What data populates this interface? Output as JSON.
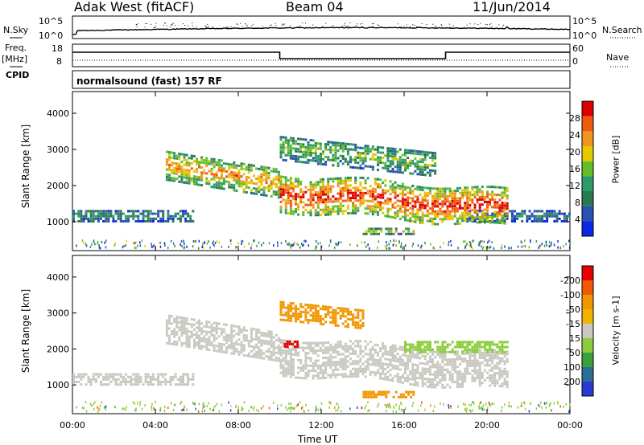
{
  "header": {
    "station": "Adak West (fitACF)",
    "beam": "Beam 04",
    "date": "11/Jun/2014"
  },
  "left_labels": {
    "nsky": "N.Sky",
    "freq": "Freq.",
    "freq_unit": "[MHz]",
    "cpid": "CPID"
  },
  "right_labels": {
    "nsearch": "N.Search",
    "nave": "Nave"
  },
  "noise_axis": {
    "left_top": "10^5",
    "left_bottom": "10^0",
    "right_top": "10^5",
    "right_bottom": "10^0"
  },
  "freq_axis": {
    "left_top": "18",
    "left_bottom": "8",
    "right_top": "60",
    "right_bottom": "0"
  },
  "cpid_text": "normalsound (fast) 157 RF",
  "colors": {
    "power": [
      "#0a28e6",
      "#2a50b4",
      "#2a7a50",
      "#2e9a6a",
      "#64be28",
      "#e6c800",
      "#f09620",
      "#f05a10",
      "#dc0000"
    ],
    "velocity": [
      "#e60000",
      "#f05a00",
      "#f09600",
      "#f0b400",
      "#c8c8c0",
      "#8ccc3c",
      "#3ca03c",
      "#2d6e96",
      "#283cd2"
    ]
  },
  "chart_data": [
    {
      "type": "heatmap",
      "panel": "power",
      "xlabel": "",
      "ylabel": "Slant Range [km]",
      "x_unit": "hours UT",
      "xlim": [
        0,
        24
      ],
      "ylim": [
        200,
        4600
      ],
      "yticks": [
        "1000",
        "2000",
        "3000",
        "4000"
      ],
      "colorbar": {
        "label": "Power [dB]",
        "ticks": [
          "4",
          "8",
          "12",
          "16",
          "20",
          "24",
          "28"
        ]
      },
      "features": [
        {
          "name": "lower band",
          "t0": 0.0,
          "t1": 5.8,
          "r0": 1000,
          "r1": 1350,
          "level": 0.3
        },
        {
          "name": "lower band evening",
          "t0": 19.0,
          "t1": 24.0,
          "r0": 1000,
          "r1": 1300,
          "level": 0.25
        },
        {
          "name": "rising arc",
          "t0": 4.5,
          "t1": 10.0,
          "r0": 1800,
          "r1": 2600,
          "level": 0.7
        },
        {
          "name": "dayside trace",
          "t0": 10.0,
          "t1": 21.0,
          "r0": 1300,
          "r1": 2300,
          "level": 0.85
        },
        {
          "name": "upper arc",
          "t0": 10.0,
          "t1": 17.5,
          "r0": 2700,
          "r1": 3400,
          "level": 0.45
        },
        {
          "name": "short echo",
          "t0": 14.0,
          "t1": 16.5,
          "r0": 650,
          "r1": 800,
          "level": 0.55
        }
      ]
    },
    {
      "type": "heatmap",
      "panel": "velocity",
      "xlabel": "Time UT",
      "ylabel": "Slant Range [km]",
      "x_unit": "hours UT",
      "xlim": [
        0,
        24
      ],
      "ylim": [
        200,
        4600
      ],
      "yticks": [
        "1000",
        "2000",
        "3000",
        "4000"
      ],
      "xticks": [
        "00:00",
        "04:00",
        "08:00",
        "12:00",
        "16:00",
        "20:00",
        "00:00"
      ],
      "colorbar": {
        "label": "Velocity [m s-1]",
        "ticks": [
          "200",
          "100",
          "50",
          "15",
          "-15",
          "-50",
          "-100",
          "-200"
        ]
      },
      "features": [
        {
          "name": "lower band",
          "t0": 0.0,
          "t1": 5.8,
          "r0": 1000,
          "r1": 1350,
          "velocity": 0
        },
        {
          "name": "rising arc",
          "t0": 4.5,
          "t1": 10.0,
          "r0": 1800,
          "r1": 2600,
          "velocity": 0
        },
        {
          "name": "dayside trace",
          "t0": 10.0,
          "t1": 21.0,
          "r0": 1300,
          "r1": 2300,
          "velocity": 0
        },
        {
          "name": "upper arc",
          "t0": 10.0,
          "t1": 14.0,
          "r0": 2800,
          "r1": 3300,
          "velocity": -60
        },
        {
          "name": "red patch",
          "t0": 10.2,
          "t1": 10.8,
          "r0": 2050,
          "r1": 2250,
          "velocity": -220
        },
        {
          "name": "short echo",
          "t0": 14.0,
          "t1": 16.5,
          "r0": 650,
          "r1": 800,
          "velocity": -60
        },
        {
          "name": "green segment",
          "t0": 16.0,
          "t1": 21.0,
          "r0": 1900,
          "r1": 2200,
          "velocity": 40
        }
      ]
    }
  ]
}
